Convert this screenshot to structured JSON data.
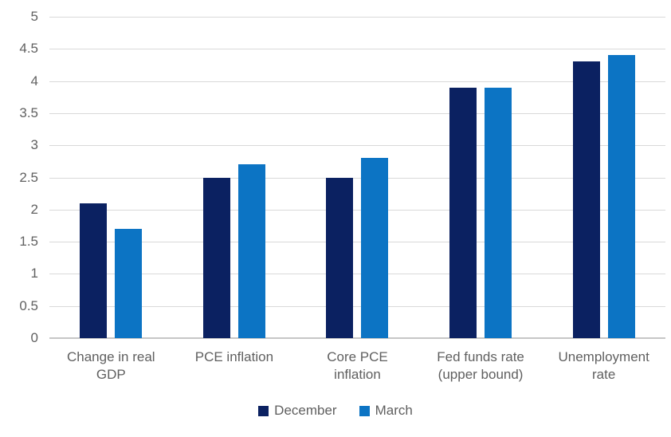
{
  "chart_data": {
    "type": "bar",
    "categories": [
      "Change in real GDP",
      "PCE inflation",
      "Core PCE inflation",
      "Fed funds rate (upper bound)",
      "Unemployment rate"
    ],
    "series": [
      {
        "name": "December",
        "color": "#0b2161",
        "values": [
          2.1,
          2.5,
          2.5,
          3.9,
          4.3
        ]
      },
      {
        "name": "March",
        "color": "#0c74c4",
        "values": [
          1.7,
          2.7,
          2.8,
          3.9,
          4.4
        ]
      }
    ],
    "title": "",
    "xlabel": "",
    "ylabel": "",
    "ylim": [
      0,
      5
    ],
    "ytick_step": 0.5,
    "yticks": [
      "5",
      "4.5",
      "4",
      "3.5",
      "3",
      "2.5",
      "2",
      "1.5",
      "1",
      "0.5",
      "0"
    ],
    "grid": true,
    "legend_position": "bottom",
    "colors": {
      "gridline": "#d9d9d9",
      "baseline": "#c6c6c6",
      "axis_text": "#616161",
      "label_text": "#5f5f5f",
      "background": "#ffffff"
    }
  }
}
